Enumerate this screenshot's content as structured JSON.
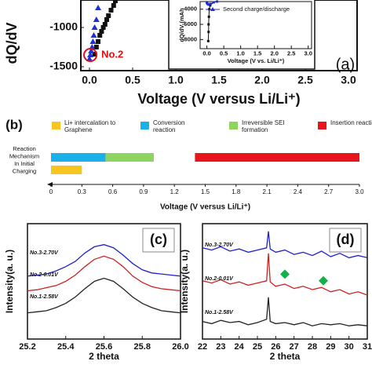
{
  "chart_data": [
    {
      "type": "scatter",
      "panel_label": "(a)",
      "y_label": "dQ/dV",
      "x_label": "Voltage (V versus Li/Li⁺)",
      "annotation": "No.2",
      "xlim": [
        -0.1,
        3.1
      ],
      "xticks": [
        {
          "value": 0,
          "label": "0.0"
        },
        0.5,
        {
          "value": 1,
          "label": "1.0"
        },
        1.5,
        {
          "value": 2,
          "label": "2.0"
        },
        2.5,
        {
          "value": 3,
          "label": "3.0"
        }
      ],
      "ylim": [
        -1550,
        -650
      ],
      "yticks": [
        -1000,
        -1500
      ],
      "series": [
        {
          "color": "#111111",
          "marker": "square",
          "x": [
            0.06,
            0.08,
            0.1,
            0.12,
            0.14,
            0.16,
            0.18,
            0.2,
            0.22,
            0.25,
            0.28,
            0.3
          ],
          "values": [
            -1340,
            -1250,
            -1180,
            -1100,
            -1050,
            -1000,
            -960,
            -900,
            -850,
            -780,
            -720,
            -660
          ]
        },
        {
          "color": "#1f2fd8",
          "marker": "triangle",
          "x": [
            0.0,
            0.01,
            0.02,
            0.03,
            0.04,
            0.05,
            0.06,
            0.08,
            0.1
          ],
          "values": [
            -1400,
            -1350,
            -1300,
            -1250,
            -1180,
            -1100,
            -1000,
            -900,
            -750
          ]
        }
      ]
    },
    {
      "type": "line",
      "y_label": "dQ/dV (mAh",
      "x_label": "Voltage (V vs. Li/Li⁺)",
      "xlim": [
        -0.2,
        3.1
      ],
      "xticks": [
        {
          "value": 0,
          "label": "0.0"
        },
        0.5,
        {
          "value": 1,
          "label": "1.0"
        },
        1.5,
        {
          "value": 2,
          "label": "2.0"
        },
        2.5,
        {
          "value": 3,
          "label": "3.0"
        }
      ],
      "ylim": [
        -9200,
        -3000
      ],
      "yticks": [
        -4000,
        -6000,
        -8000
      ],
      "series": [
        {
          "color": "#111111",
          "x": [
            0.04,
            0.05,
            0.05,
            0.06,
            0.07,
            0.1,
            0.2
          ],
          "values": [
            -8200,
            -7000,
            -6000,
            -5000,
            -4000,
            -3500,
            -3100
          ]
        },
        {
          "name": "Second charge/discharge",
          "color": "#1f2fd8",
          "x": [
            0.0,
            0.02,
            0.05,
            0.1,
            0.2,
            0.3
          ],
          "values": [
            -3200,
            -3300,
            -3400,
            -3300,
            -3100,
            -3000
          ]
        }
      ]
    },
    {
      "type": "range_bar",
      "panel_label": "(b)",
      "y_label_lines": [
        "Reaction",
        "Mechanism",
        "In Initial",
        "Charging"
      ],
      "x_label": "Voltage (V versus Li/Li⁺)",
      "xlim": [
        0,
        3
      ],
      "xticks": [
        0,
        0.3,
        0.6,
        0.9,
        1.2,
        1.5,
        1.8,
        2.1,
        2.4,
        2.7,
        {
          "value": 3,
          "label": "3.0"
        }
      ],
      "series": [
        {
          "name": "Li+ intercalation to Graphene",
          "color": "#f7c520",
          "start": [
            0
          ],
          "end": [
            0.3
          ]
        },
        {
          "name": "Conversion reaction",
          "color": "#1ab0ea",
          "start": [
            0
          ],
          "end": [
            0.53
          ]
        },
        {
          "name": "Irreversible SEI formation",
          "color": "#8fd460",
          "start": [
            0.53
          ],
          "end": [
            1.0
          ]
        },
        {
          "name": "Insertion reaction",
          "color": "#e8141c",
          "start": [
            1.4
          ],
          "end": [
            3.0
          ]
        }
      ]
    },
    {
      "type": "line",
      "panel_label": "(c)",
      "y_label": "Intensity(a. u.)",
      "x_label": "2 theta",
      "x": [
        25.2,
        25.25,
        25.3,
        25.35,
        25.4,
        25.45,
        25.5,
        25.55,
        25.6,
        25.65,
        25.7,
        25.75,
        25.8,
        25.85,
        25.9,
        25.95,
        26.0
      ],
      "xlim": [
        25.2,
        26.0
      ],
      "xticks": [
        25.2,
        25.4,
        25.6,
        25.8,
        {
          "value": 26,
          "label": "26.0"
        }
      ],
      "ylim": [
        -1,
        10
      ],
      "series": [
        {
          "name": "No.3-2.70V",
          "color": "#2020d0",
          "values": [
            5.0,
            5.1,
            5.2,
            5.5,
            5.9,
            6.4,
            7.2,
            7.8,
            8.0,
            7.7,
            7.0,
            6.2,
            5.6,
            5.3,
            5.2,
            5.1,
            5.0
          ]
        },
        {
          "name": "No.2-0.01V",
          "color": "#d02020",
          "values": [
            3.6,
            3.7,
            3.9,
            4.1,
            4.5,
            5.1,
            5.9,
            6.6,
            6.9,
            6.6,
            5.9,
            5.0,
            4.4,
            4.0,
            3.8,
            3.7,
            3.6
          ]
        },
        {
          "name": "No.1-2.58V",
          "color": "#222222",
          "values": [
            1.5,
            1.6,
            1.7,
            2.0,
            2.4,
            3.0,
            3.8,
            4.5,
            4.8,
            4.5,
            3.8,
            3.0,
            2.4,
            2.0,
            1.7,
            1.6,
            1.5
          ]
        }
      ]
    },
    {
      "type": "line",
      "panel_label": "(d)",
      "y_label": "Intensity(a. u.)",
      "x_label": "2 theta",
      "x": [
        22,
        22.5,
        23,
        23.5,
        24,
        24.5,
        25,
        25.5,
        25.6,
        25.7,
        26,
        26.5,
        27,
        27.5,
        28,
        28.5,
        29,
        29.5,
        30,
        30.5,
        31
      ],
      "xlim": [
        22,
        31
      ],
      "xticks": [
        22,
        23,
        24,
        25,
        26,
        27,
        28,
        29,
        30,
        31
      ],
      "ylim": [
        0,
        10.5
      ],
      "series": [
        {
          "name": "No.3-2.70V",
          "color": "#2020d0",
          "values": [
            8.3,
            8.1,
            8.4,
            8.0,
            8.2,
            7.9,
            8.1,
            8.3,
            9.8,
            8.2,
            7.9,
            8.1,
            7.7,
            7.9,
            7.6,
            8.0,
            7.5,
            7.8,
            7.4,
            7.6,
            7.4
          ]
        },
        {
          "name": "No.2-0.01V",
          "color": "#d02020",
          "values": [
            5.3,
            5.1,
            5.4,
            5.0,
            5.2,
            4.9,
            5.1,
            5.3,
            7.8,
            5.2,
            4.8,
            5.0,
            4.6,
            4.8,
            4.5,
            4.7,
            4.3,
            4.5,
            4.1,
            4.3,
            4.0
          ]
        },
        {
          "name": "No.1-2.58V",
          "color": "#222222",
          "values": [
            1.6,
            1.4,
            1.7,
            1.5,
            1.6,
            1.3,
            1.5,
            1.8,
            3.8,
            1.6,
            1.4,
            1.5,
            1.3,
            1.5,
            1.2,
            1.4,
            1.3,
            1.4,
            1.2,
            1.3,
            1.2
          ]
        }
      ],
      "markers": {
        "color": "#16b04a",
        "x": [
          26.5,
          28.6
        ],
        "values": [
          5.9,
          5.3
        ]
      }
    }
  ]
}
